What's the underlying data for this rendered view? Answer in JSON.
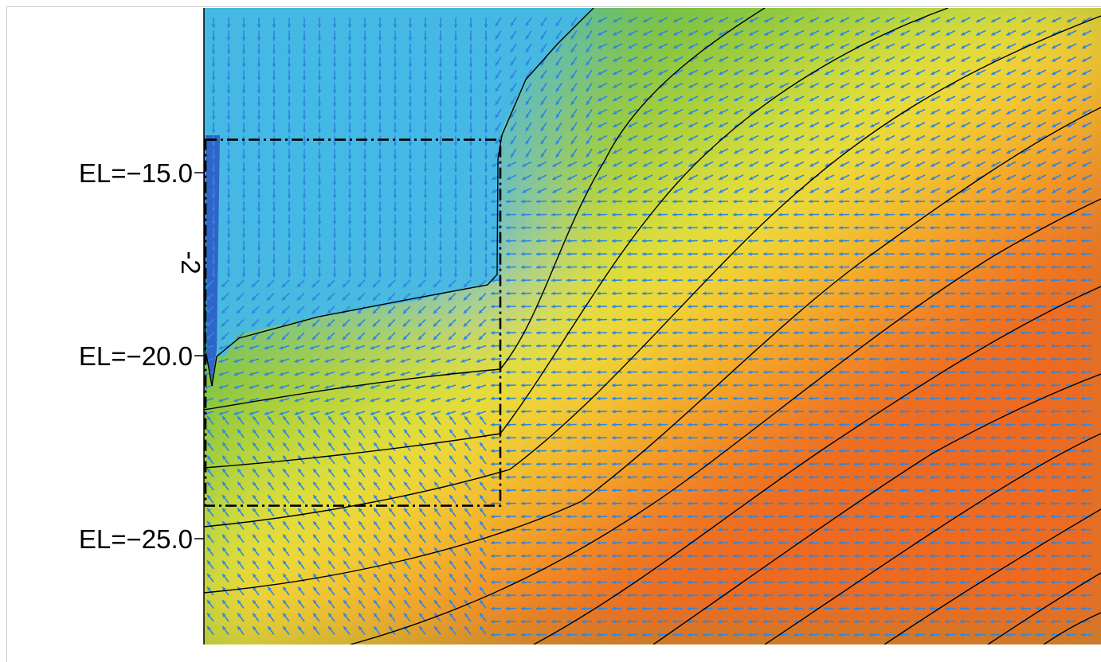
{
  "chart_data": {
    "type": "heatmap",
    "subtype": "contour-with-vector-field",
    "title": "",
    "xlabel": "",
    "ylabel": "",
    "y_ticks": [
      {
        "value": -15.0,
        "label": "EL=−15.0"
      },
      {
        "value": -20.0,
        "label": "EL=−20.0"
      },
      {
        "value": -25.0,
        "label": "EL=−25.0"
      }
    ],
    "ylim": [
      -28.1,
      -11.4
    ],
    "annotations": [
      {
        "text": "-2",
        "orientation": "rotated-90",
        "near_elevation": -17.3
      }
    ],
    "dashed_region": {
      "style": "dash-dot",
      "elevation_top": -14.1,
      "elevation_bottom": -24.1
    },
    "colormap": [
      "#2f64c8",
      "#44b8e6",
      "#5cc0b4",
      "#5bb84a",
      "#9ccc3c",
      "#f0e63c",
      "#f5a028",
      "#ec6a24"
    ],
    "vector_color": "#2f86e0",
    "contour_color": "#000000",
    "grid": false,
    "legend": "none"
  }
}
